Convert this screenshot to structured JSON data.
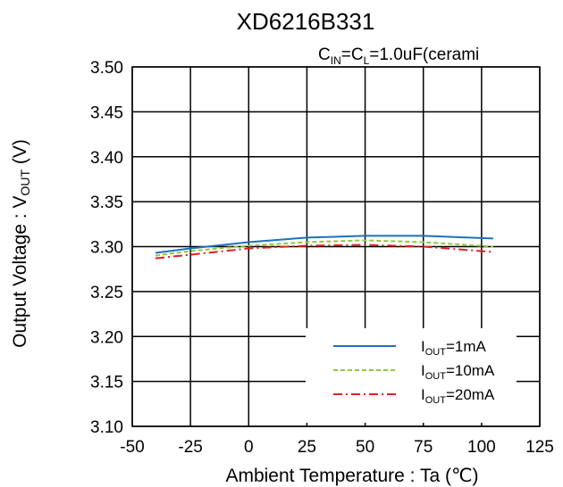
{
  "chart_data": {
    "type": "line",
    "title": "XD6216B331",
    "subtitle": {
      "c1": "C",
      "c1_sub": "IN",
      "mid": "=C",
      "c2_sub": "L",
      "rest": "=1.0uF(cerami"
    },
    "xlabel": "Ambient Temperature  : Ta (℃)",
    "ylabel": {
      "main": "Output Voltage : V",
      "sub": "OUT",
      "unit": " (V)"
    },
    "xlim": [
      -50,
      125
    ],
    "ylim": [
      3.1,
      3.5
    ],
    "x_ticks": [
      "-50",
      "-25",
      "0",
      "25",
      "50",
      "75",
      "100",
      "125"
    ],
    "y_ticks": [
      "3.10",
      "3.15",
      "3.20",
      "3.25",
      "3.30",
      "3.35",
      "3.40",
      "3.45",
      "3.50"
    ],
    "grid": true,
    "legend_position": "bottom-right",
    "series": [
      {
        "name": "I_OUT=1mA",
        "legend": {
          "main": "I",
          "sub": "OUT",
          "rest": "=1mA"
        },
        "color": "#1f6fbf",
        "style": "solid",
        "x": [
          -40,
          -25,
          0,
          25,
          50,
          75,
          105
        ],
        "y": [
          3.293,
          3.298,
          3.305,
          3.31,
          3.312,
          3.312,
          3.309
        ]
      },
      {
        "name": "I_OUT=10mA",
        "legend": {
          "main": "I",
          "sub": "OUT",
          "rest": "=10mA"
        },
        "color": "#8fc83c",
        "style": "dashed",
        "x": [
          -40,
          -25,
          0,
          25,
          50,
          75,
          105
        ],
        "y": [
          3.29,
          3.295,
          3.301,
          3.305,
          3.307,
          3.305,
          3.3
        ]
      },
      {
        "name": "I_OUT=20mA",
        "legend": {
          "main": "I",
          "sub": "OUT",
          "rest": "=20mA"
        },
        "color": "#e02020",
        "style": "dashdot",
        "x": [
          -40,
          -25,
          0,
          25,
          50,
          75,
          105
        ],
        "y": [
          3.287,
          3.291,
          3.298,
          3.301,
          3.302,
          3.3,
          3.294
        ]
      }
    ]
  }
}
